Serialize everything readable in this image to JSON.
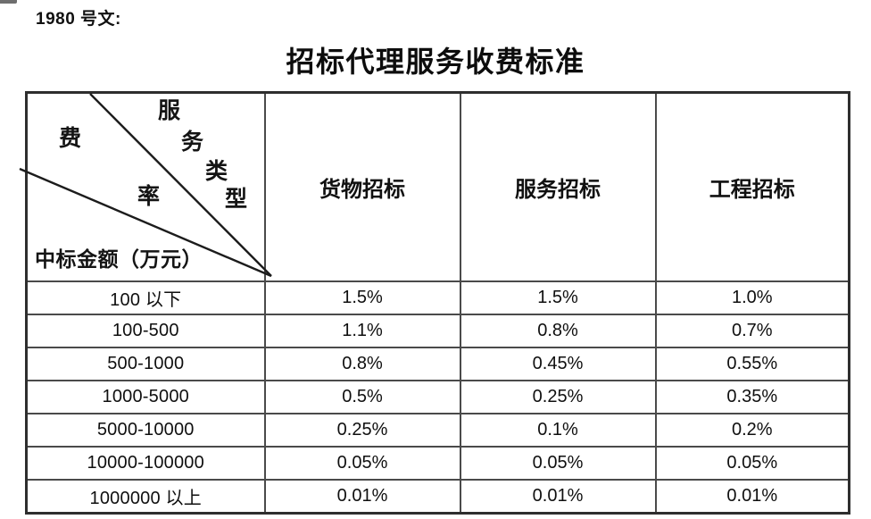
{
  "page": {
    "ref_label": "1980 号文:",
    "title": "招标代理服务收费标准"
  },
  "table": {
    "corner": {
      "service_type_chars": [
        "服",
        "务",
        "类",
        "型"
      ],
      "fee_rate_chars": [
        "费",
        "率"
      ],
      "amount_label": "中标金额（万元）"
    },
    "column_headers": [
      "货物招标",
      "服务招标",
      "工程招标"
    ],
    "rows": [
      {
        "range": "100 以下",
        "values": [
          "1.5%",
          "1.5%",
          "1.0%"
        ]
      },
      {
        "range": "100-500",
        "values": [
          "1.1%",
          "0.8%",
          "0.7%"
        ]
      },
      {
        "range": "500-1000",
        "values": [
          "0.8%",
          "0.45%",
          "0.55%"
        ]
      },
      {
        "range": "1000-5000",
        "values": [
          "0.5%",
          "0.25%",
          "0.35%"
        ]
      },
      {
        "range": "5000-10000",
        "values": [
          "0.25%",
          "0.1%",
          "0.2%"
        ]
      },
      {
        "range": "10000-100000",
        "values": [
          "0.05%",
          "0.05%",
          "0.05%"
        ]
      },
      {
        "range": "1000000 以上",
        "values": [
          "0.01%",
          "0.01%",
          "0.01%"
        ]
      }
    ],
    "border_color": "#4a4a4a",
    "text_color": "#111111"
  }
}
